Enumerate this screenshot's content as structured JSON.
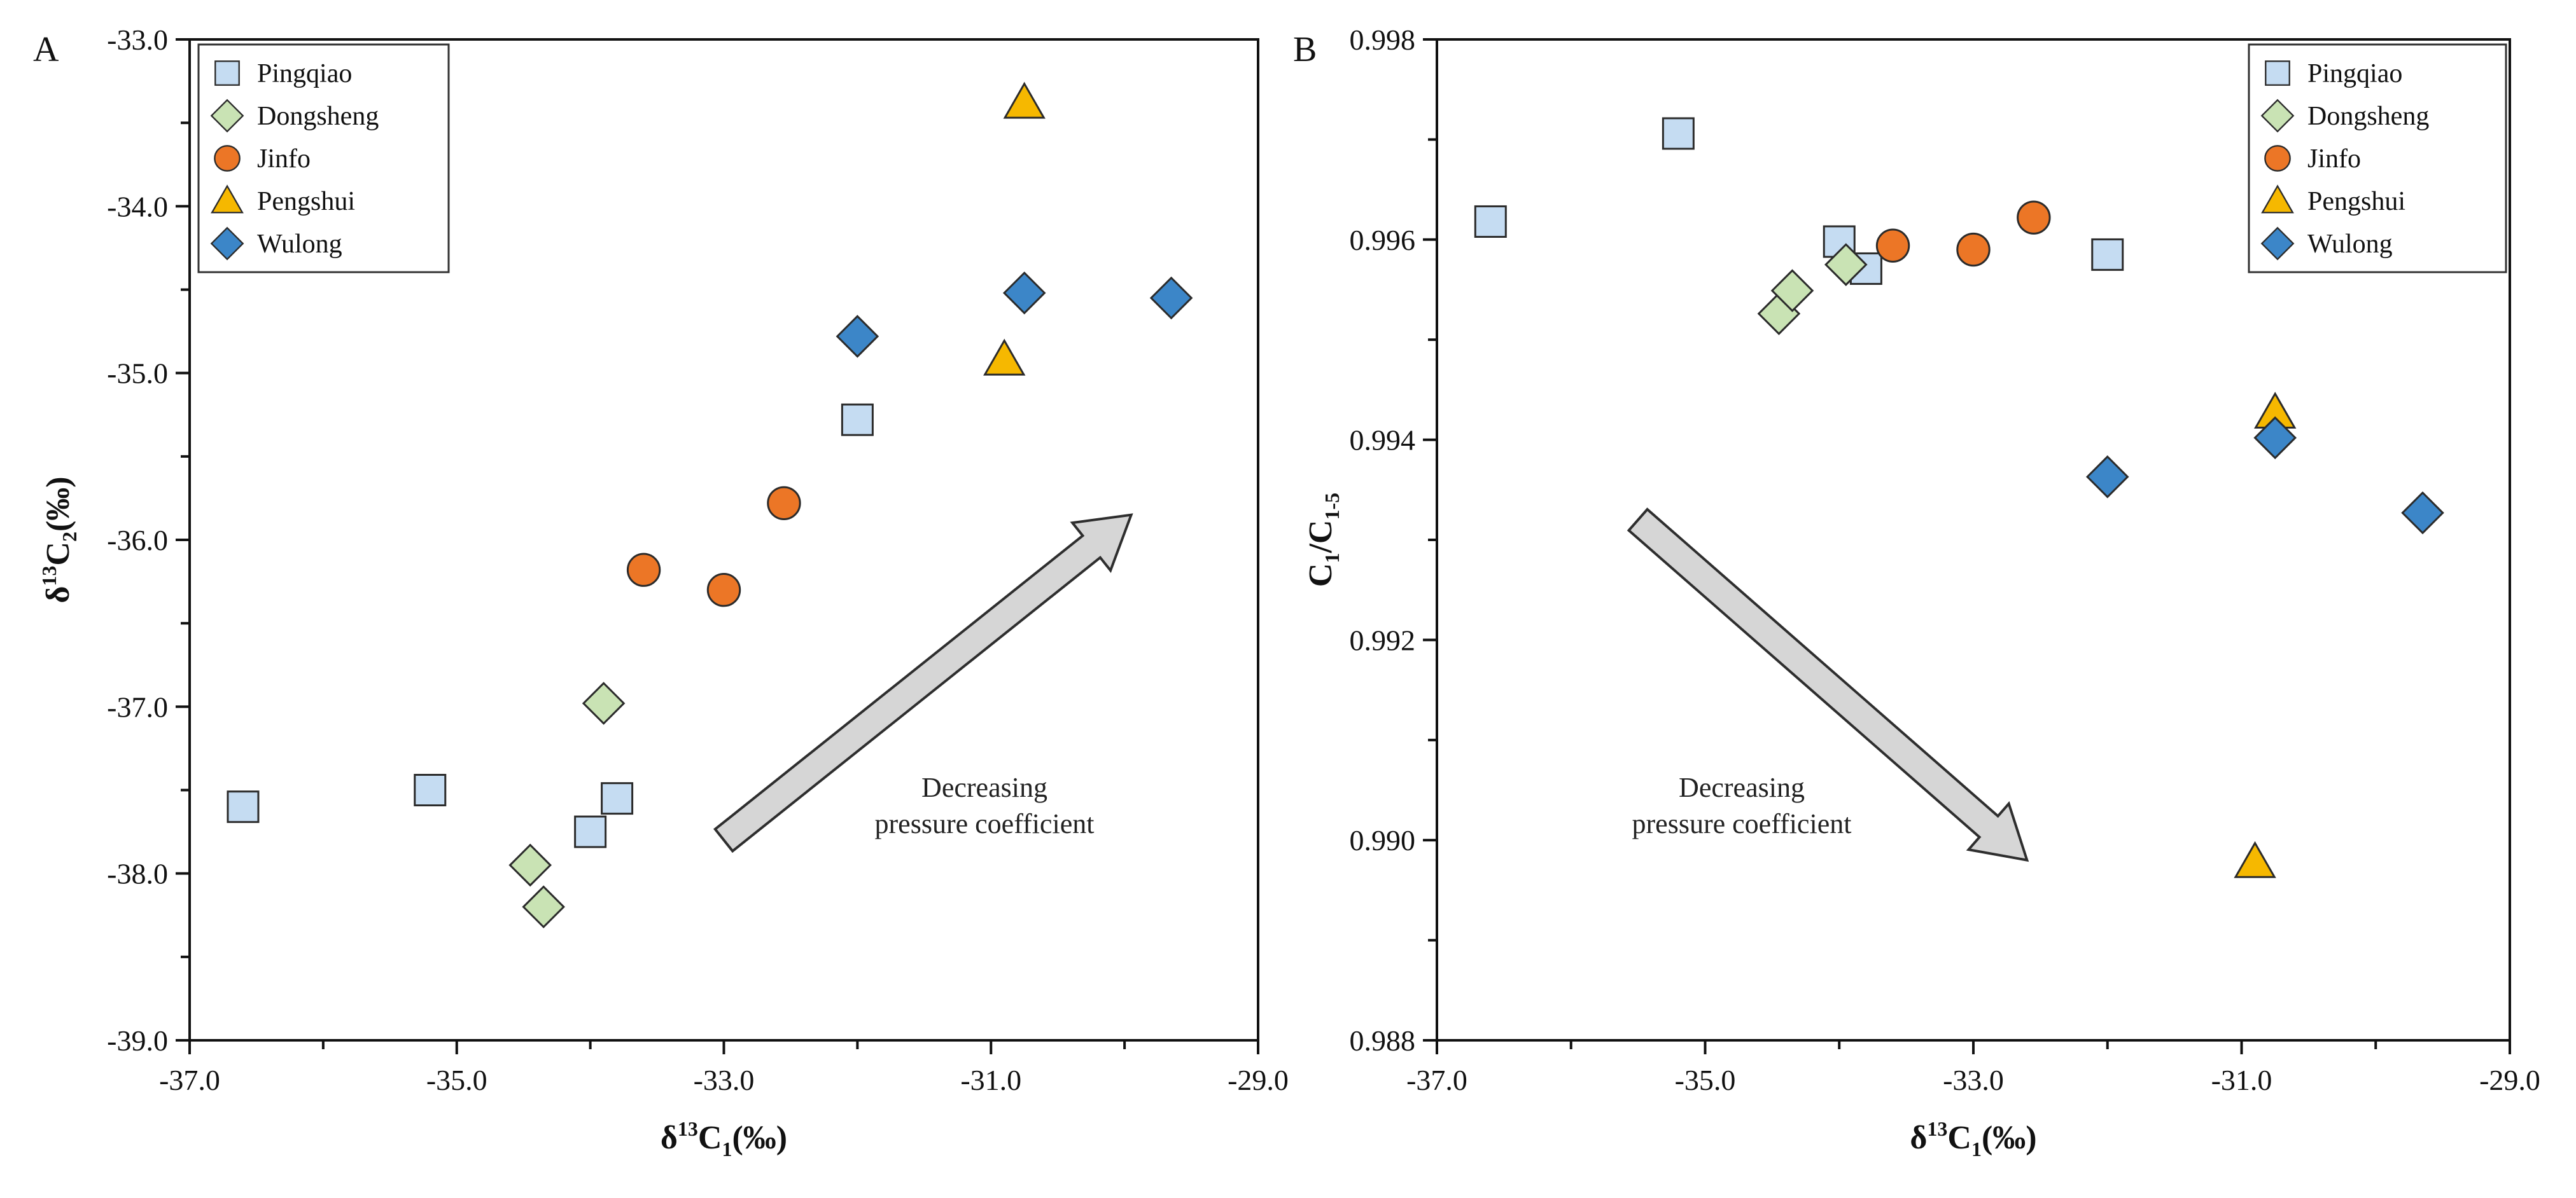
{
  "chart_data": [
    {
      "panel": "A",
      "type": "scatter",
      "xlabel": "δ13C1(‰)",
      "ylabel": "δ13C2(‰)",
      "xlim": [
        -37.0,
        -29.0
      ],
      "ylim": [
        -39.0,
        -33.0
      ],
      "xticks": [
        -37.0,
        -35.0,
        -33.0,
        -31.0,
        -29.0
      ],
      "yticks": [
        -39.0,
        -38.0,
        -37.0,
        -36.0,
        -35.0,
        -34.0,
        -33.0
      ],
      "tick_labels_x": [
        "-37.0",
        "-35.0",
        "-33.0",
        "-31.0",
        "-29.0"
      ],
      "tick_labels_y": [
        "-39.0",
        "-38.0",
        "-37.0",
        "-36.0",
        "-35.0",
        "-34.0",
        "-33.0"
      ],
      "legend_position": "top-left",
      "annotation": {
        "lines": [
          "Decreasing",
          "pressure coefficient"
        ],
        "arrow_direction": "up-right",
        "arrow_from": [
          -33.0,
          -37.8
        ],
        "arrow_to": [
          -29.95,
          -35.85
        ]
      },
      "series": [
        {
          "name": "Pingqiao",
          "marker": "square",
          "color": "#c5dcf2",
          "x": [
            -36.6,
            -35.2,
            -34.0,
            -33.8,
            -32.0
          ],
          "y": [
            -37.6,
            -37.5,
            -37.75,
            -37.55,
            -35.28
          ]
        },
        {
          "name": "Dongsheng",
          "marker": "diamond",
          "color": "#c9e3b4",
          "x": [
            -34.45,
            -34.35,
            -33.9
          ],
          "y": [
            -37.95,
            -38.2,
            -36.98
          ]
        },
        {
          "name": "Jinfo",
          "marker": "circle",
          "color": "#ec7626",
          "x": [
            -33.6,
            -33.0,
            -32.55
          ],
          "y": [
            -36.18,
            -36.3,
            -35.78
          ]
        },
        {
          "name": "Pengshui",
          "marker": "triangle",
          "color": "#f6b800",
          "x": [
            -30.75,
            -30.9
          ],
          "y": [
            -33.38,
            -34.92
          ]
        },
        {
          "name": "Wulong",
          "marker": "diamond",
          "color": "#3c86c8",
          "x": [
            -32.0,
            -30.75,
            -29.65
          ],
          "y": [
            -34.78,
            -34.52,
            -34.55
          ]
        }
      ]
    },
    {
      "panel": "B",
      "type": "scatter",
      "xlabel": "δ13C1(‰)",
      "ylabel": "C1/C1-5",
      "xlim": [
        -37.0,
        -29.0
      ],
      "ylim": [
        0.988,
        0.998
      ],
      "xticks": [
        -37.0,
        -35.0,
        -33.0,
        -31.0,
        -29.0
      ],
      "yticks": [
        0.988,
        0.99,
        0.992,
        0.994,
        0.996,
        0.998
      ],
      "tick_labels_x": [
        "-37.0",
        "-35.0",
        "-33.0",
        "-31.0",
        "-29.0"
      ],
      "tick_labels_y": [
        "0.988",
        "0.990",
        "0.992",
        "0.994",
        "0.996",
        "0.998"
      ],
      "legend_position": "top-right",
      "annotation": {
        "lines": [
          "Decreasing",
          "pressure coefficient"
        ],
        "arrow_direction": "down-right",
        "arrow_from": [
          -35.5,
          0.9932
        ],
        "arrow_to": [
          -32.6,
          0.9898
        ]
      },
      "series": [
        {
          "name": "Pingqiao",
          "marker": "square",
          "color": "#c5dcf2",
          "x": [
            -36.6,
            -35.2,
            -34.0,
            -33.8,
            -32.0
          ],
          "y": [
            0.99618,
            0.99706,
            0.99598,
            0.99571,
            0.99585
          ]
        },
        {
          "name": "Dongsheng",
          "marker": "diamond",
          "color": "#c9e3b4",
          "x": [
            -34.45,
            -34.35,
            -33.95
          ],
          "y": [
            0.99526,
            0.99549,
            0.99575
          ]
        },
        {
          "name": "Jinfo",
          "marker": "circle",
          "color": "#ec7626",
          "x": [
            -33.6,
            -33.0,
            -32.55
          ],
          "y": [
            0.99594,
            0.9959,
            0.99622
          ]
        },
        {
          "name": "Pengshui",
          "marker": "triangle",
          "color": "#f6b800",
          "x": [
            -30.75,
            -30.9
          ],
          "y": [
            0.99427,
            0.98978
          ]
        },
        {
          "name": "Wulong",
          "marker": "diamond",
          "color": "#3c86c8",
          "x": [
            -32.0,
            -30.75,
            -29.65
          ],
          "y": [
            0.99363,
            0.99402,
            0.99327
          ]
        }
      ]
    }
  ]
}
